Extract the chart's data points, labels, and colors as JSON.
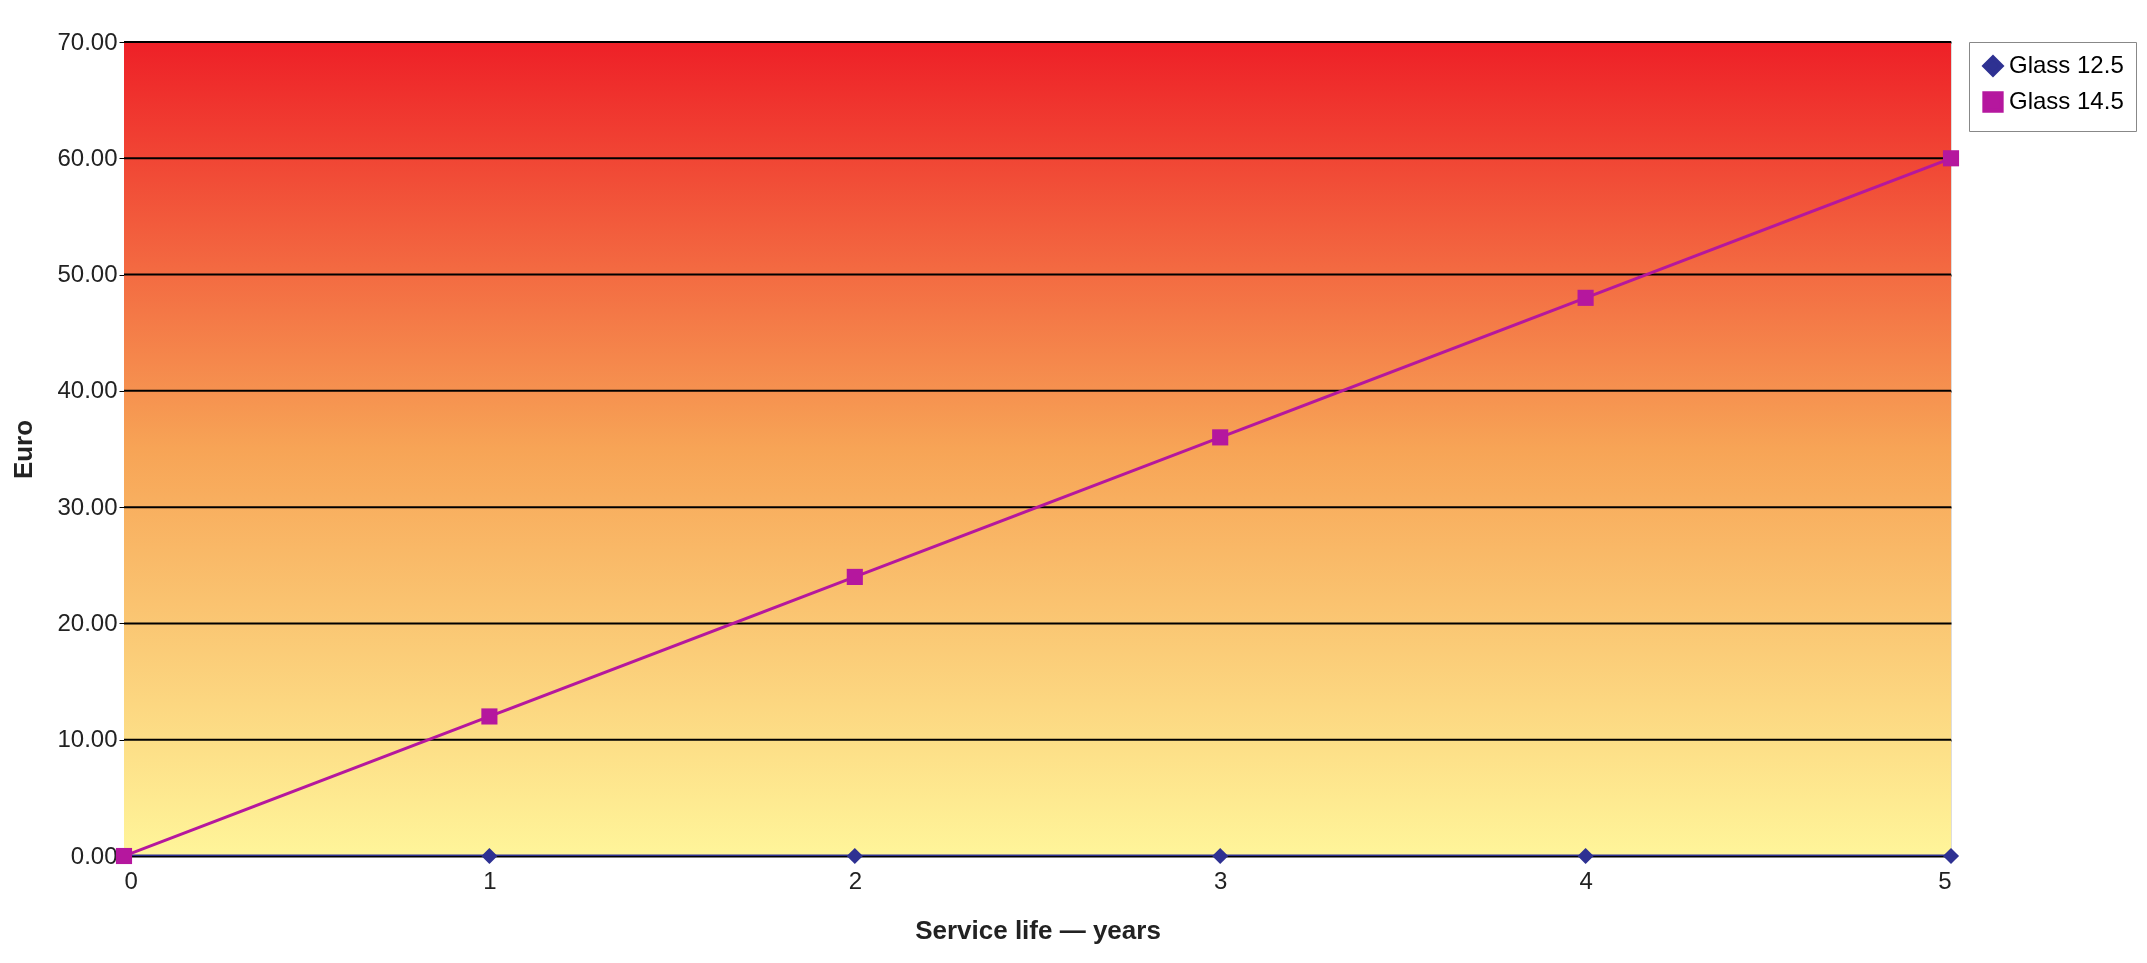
{
  "chart_data": {
    "type": "line",
    "xlabel": "Service life — years",
    "ylabel": "Euro",
    "x": [
      0,
      1,
      2,
      3,
      4,
      5
    ],
    "series": [
      {
        "name": "Glass 12.5",
        "color": "#2e3192",
        "marker": "diamond",
        "values": [
          0,
          0,
          0,
          0,
          0,
          0
        ]
      },
      {
        "name": "Glass 14.5",
        "color": "#b5179e",
        "marker": "square",
        "values": [
          0,
          12,
          24,
          36,
          48,
          60
        ]
      }
    ],
    "xlim": [
      0,
      5
    ],
    "xticks": [
      0,
      1,
      2,
      3,
      4,
      5
    ],
    "ylim": [
      0,
      70
    ],
    "yticks": [
      {
        "value": 0,
        "label": "0.00"
      },
      {
        "value": 10,
        "label": "10.00"
      },
      {
        "value": 20,
        "label": "20.00"
      },
      {
        "value": 30,
        "label": "30.00"
      },
      {
        "value": 40,
        "label": "40.00"
      },
      {
        "value": 50,
        "label": "50.00"
      },
      {
        "value": 60,
        "label": "60.00"
      },
      {
        "value": 70,
        "label": "70.00"
      }
    ],
    "grid": "y",
    "legend": "right"
  }
}
